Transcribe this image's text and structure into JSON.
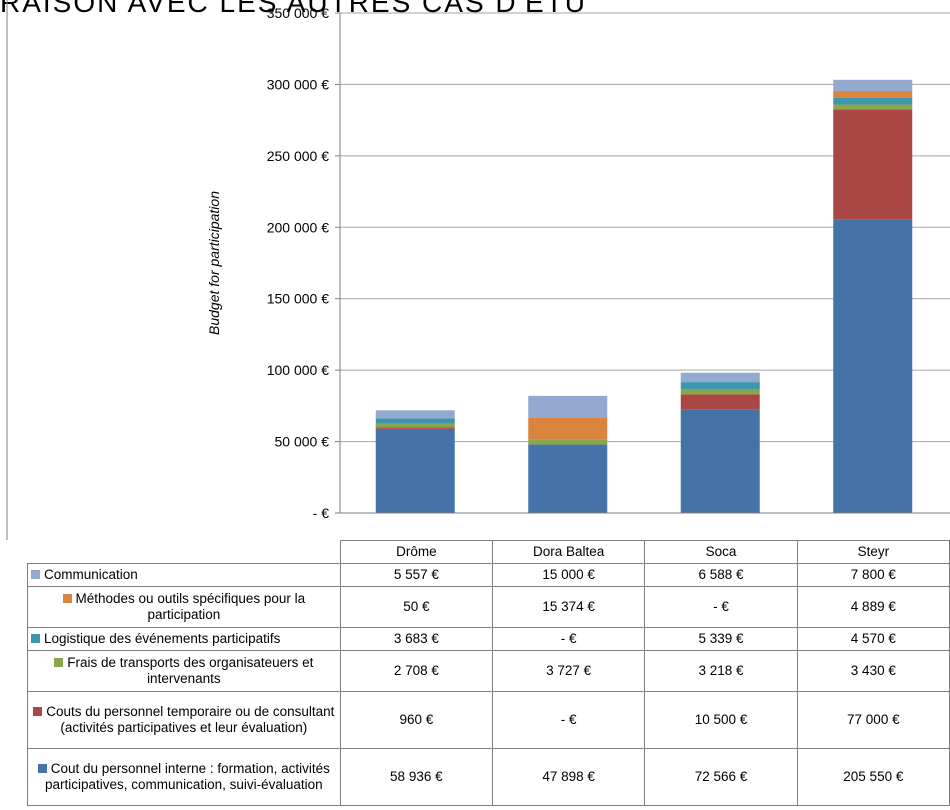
{
  "clipped_title": "RAISON AVEC LES AUTRES CAS D'ETU",
  "chart_data": {
    "type": "bar",
    "stacked": true,
    "categories": [
      "Drôme",
      "Dora Baltea",
      "Soca",
      "Steyr"
    ],
    "ylabel": "Budget for participation",
    "ylim": [
      0,
      350000
    ],
    "yticks": [
      0,
      50000,
      100000,
      150000,
      200000,
      250000,
      300000,
      350000
    ],
    "ytick_labels": [
      "-  €",
      "50 000 €",
      "100 000 €",
      "150 000 €",
      "200 000 €",
      "250 000 €",
      "300 000 €",
      "350 000 €"
    ],
    "grid": true,
    "legend_position": "data-table",
    "series": [
      {
        "name": "Cout du personnel interne : formation, activités participatives, communication, suivi-évaluation",
        "color": "#4572a7",
        "values": [
          58936,
          47898,
          72566,
          205550
        ],
        "labels": [
          "58 936 €",
          "47 898 €",
          "72 566 €",
          "205 550 €"
        ]
      },
      {
        "name": "Couts du personnel temporaire ou de consultant (activités participatives et leur évaluation)",
        "color": "#aa4643",
        "values": [
          960,
          0,
          10500,
          77000
        ],
        "labels": [
          "960 €",
          "-  €",
          "10 500 €",
          "77 000 €"
        ]
      },
      {
        "name": "Frais de transports des organisateuers et intervenants",
        "color": "#89a54e",
        "values": [
          2708,
          3727,
          3218,
          3430
        ],
        "labels": [
          "2 708 €",
          "3 727 €",
          "3 218 €",
          "3 430 €"
        ]
      },
      {
        "name": "Logistique des événements participatifs",
        "color": "#3d96ae",
        "values": [
          3683,
          0,
          5339,
          4570
        ],
        "labels": [
          "3 683 €",
          "-  €",
          "5 339 €",
          "4 570 €"
        ]
      },
      {
        "name": "Méthodes ou outils spécifiques pour la participation",
        "color": "#db843d",
        "values": [
          50,
          15374,
          0,
          4889
        ],
        "labels": [
          "50 €",
          "15 374 €",
          "-  €",
          "4 889 €"
        ]
      },
      {
        "name": "Communication",
        "color": "#93a9cf",
        "values": [
          5557,
          15000,
          6588,
          7800
        ],
        "labels": [
          "5 557 €",
          "15 000 €",
          "6 588 €",
          "7 800 €"
        ]
      }
    ]
  }
}
